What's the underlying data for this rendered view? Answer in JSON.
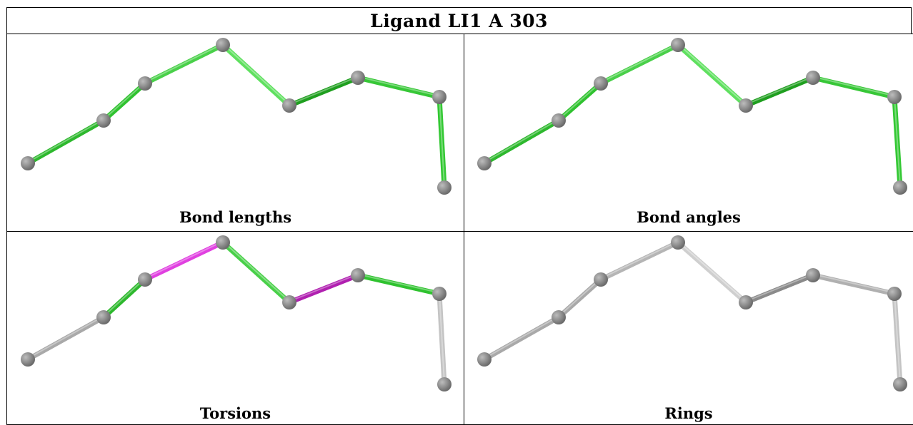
{
  "title": "Ligand LI1 A 303",
  "panels": [
    {
      "id": "bond-lengths",
      "caption": "Bond lengths",
      "bond_colors": [
        "#2db82d",
        "#2fc22f",
        "#49d049",
        "#5fe05f",
        "#1f9f1f",
        "#37c737",
        "#33c833"
      ]
    },
    {
      "id": "bond-angles",
      "caption": "Bond angles",
      "bond_colors": [
        "#2db82d",
        "#2fc22f",
        "#49d049",
        "#5fe05f",
        "#1f9f1f",
        "#37c737",
        "#33c833"
      ]
    },
    {
      "id": "torsions",
      "caption": "Torsions",
      "bond_colors": [
        "#a9a9a9",
        "#2db82d",
        "#e040e0",
        "#49d049",
        "#b020b0",
        "#2fc22f",
        "#c4c4c4"
      ]
    },
    {
      "id": "rings",
      "caption": "Rings",
      "bond_colors": [
        "#a9a9a9",
        "#a9a9a9",
        "#b5b5b5",
        "#cfcfcf",
        "#8a8a8a",
        "#b0b0b0",
        "#c4c4c4"
      ]
    }
  ],
  "colors": {
    "atom": "#6b6b6b",
    "atom_highlight": "#bdbdbd",
    "border": "#000000"
  }
}
